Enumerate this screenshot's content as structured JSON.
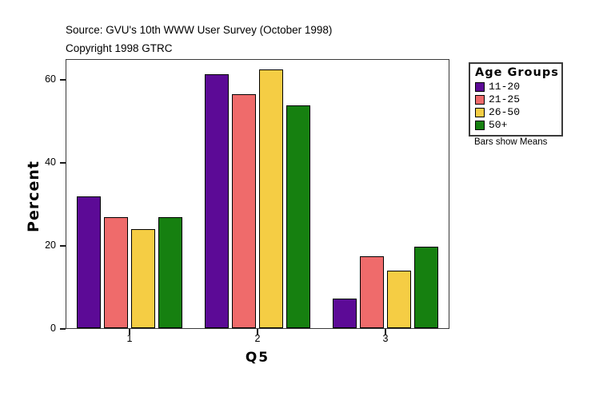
{
  "header": {
    "source_line": "Source: GVU's 10th WWW User Survey (October 1998)",
    "copyright_line": "Copyright 1998 GTRC"
  },
  "chart_data": {
    "type": "bar",
    "title": "",
    "xlabel": "Q5",
    "ylabel": "Percent",
    "categories": [
      "1",
      "2",
      "3"
    ],
    "series": [
      {
        "name": "11-20",
        "color": "#5C0A96",
        "values": [
          31.7,
          61.2,
          7.2
        ]
      },
      {
        "name": "21-25",
        "color": "#EF6B6B",
        "values": [
          26.7,
          56.3,
          17.3
        ]
      },
      {
        "name": "26-50",
        "color": "#F5CD44",
        "values": [
          23.8,
          62.3,
          13.9
        ]
      },
      {
        "name": "50+",
        "color": "#168010",
        "values": [
          26.7,
          53.6,
          19.7
        ]
      }
    ],
    "ylim": [
      0,
      65
    ],
    "yticks": [
      0,
      20,
      40,
      60
    ],
    "grid": false,
    "legend_title": "Age Groups",
    "legend_position": "right",
    "annotation": "Bars show Means",
    "axis_color": "#3a3a3a"
  }
}
